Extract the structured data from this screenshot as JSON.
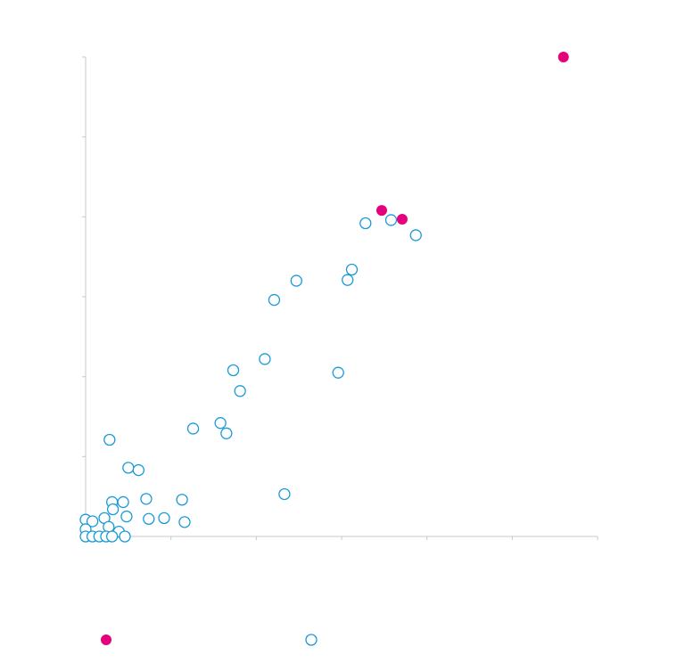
{
  "chart_data": {
    "type": "scatter",
    "title": "",
    "xlabel": "",
    "ylabel": "",
    "xlim": [
      0,
      60
    ],
    "ylim": [
      0,
      60
    ],
    "x_ticks": [
      0,
      10,
      20,
      30,
      40,
      50,
      60
    ],
    "y_ticks": [
      0,
      10,
      20,
      30,
      40,
      50,
      60
    ],
    "grid": false,
    "legend": {
      "position": "bottom",
      "labels_visible": false
    },
    "series": [
      {
        "marker": "filled-circle",
        "color": "#e5007e",
        "points": [
          [
            56.0,
            60.0
          ],
          [
            34.7,
            40.8
          ],
          [
            37.1,
            39.7
          ]
        ]
      },
      {
        "marker": "open-circle",
        "color": "#1a9ad6",
        "points": [
          [
            32.8,
            39.2
          ],
          [
            35.8,
            39.6
          ],
          [
            38.7,
            37.7
          ],
          [
            31.2,
            33.4
          ],
          [
            30.7,
            32.1
          ],
          [
            24.7,
            32.0
          ],
          [
            22.1,
            29.6
          ],
          [
            21.0,
            22.2
          ],
          [
            17.3,
            20.8
          ],
          [
            18.1,
            18.2
          ],
          [
            29.6,
            20.5
          ],
          [
            12.6,
            13.5
          ],
          [
            15.8,
            14.2
          ],
          [
            16.5,
            12.9
          ],
          [
            2.8,
            12.1
          ],
          [
            5.0,
            8.6
          ],
          [
            6.2,
            8.3
          ],
          [
            23.3,
            5.3
          ],
          [
            7.1,
            4.7
          ],
          [
            11.3,
            4.6
          ],
          [
            3.1,
            4.3
          ],
          [
            4.4,
            4.3
          ],
          [
            3.2,
            3.4
          ],
          [
            4.8,
            2.5
          ],
          [
            7.4,
            2.2
          ],
          [
            9.2,
            2.3
          ],
          [
            11.6,
            1.8
          ],
          [
            0.0,
            2.1
          ],
          [
            0.8,
            1.9
          ],
          [
            2.2,
            2.3
          ],
          [
            0.0,
            0.9
          ],
          [
            2.7,
            1.2
          ],
          [
            3.9,
            0.6
          ],
          [
            0.0,
            0.0
          ],
          [
            0.8,
            0.0
          ],
          [
            1.6,
            0.0
          ],
          [
            2.4,
            0.0
          ],
          [
            3.1,
            0.0
          ],
          [
            4.6,
            0.0
          ]
        ]
      }
    ]
  }
}
